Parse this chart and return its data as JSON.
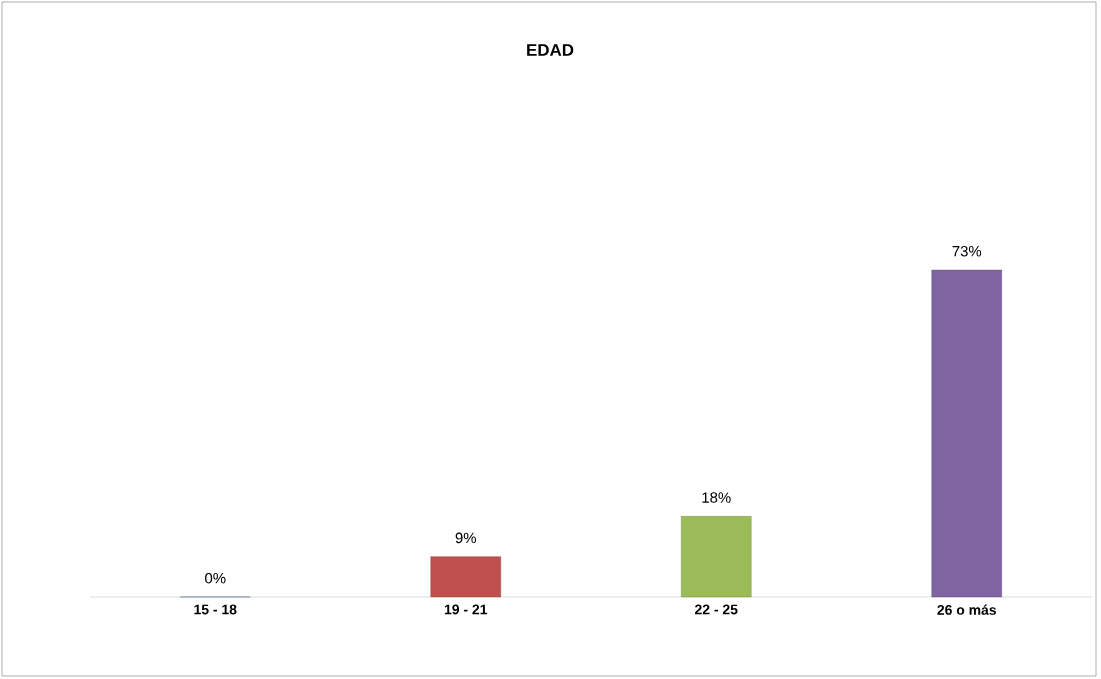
{
  "chart_data": {
    "type": "bar",
    "title": "EDAD",
    "categories": [
      "15 - 18",
      "19 - 21",
      "22 - 25",
      "26 o más"
    ],
    "values": [
      0,
      9,
      18,
      73
    ],
    "colors": [
      "#4f81bd",
      "#c0504d",
      "#9bbb59",
      "#8064a2"
    ],
    "value_labels": [
      "0%",
      "9%",
      "18%",
      "73%"
    ]
  }
}
